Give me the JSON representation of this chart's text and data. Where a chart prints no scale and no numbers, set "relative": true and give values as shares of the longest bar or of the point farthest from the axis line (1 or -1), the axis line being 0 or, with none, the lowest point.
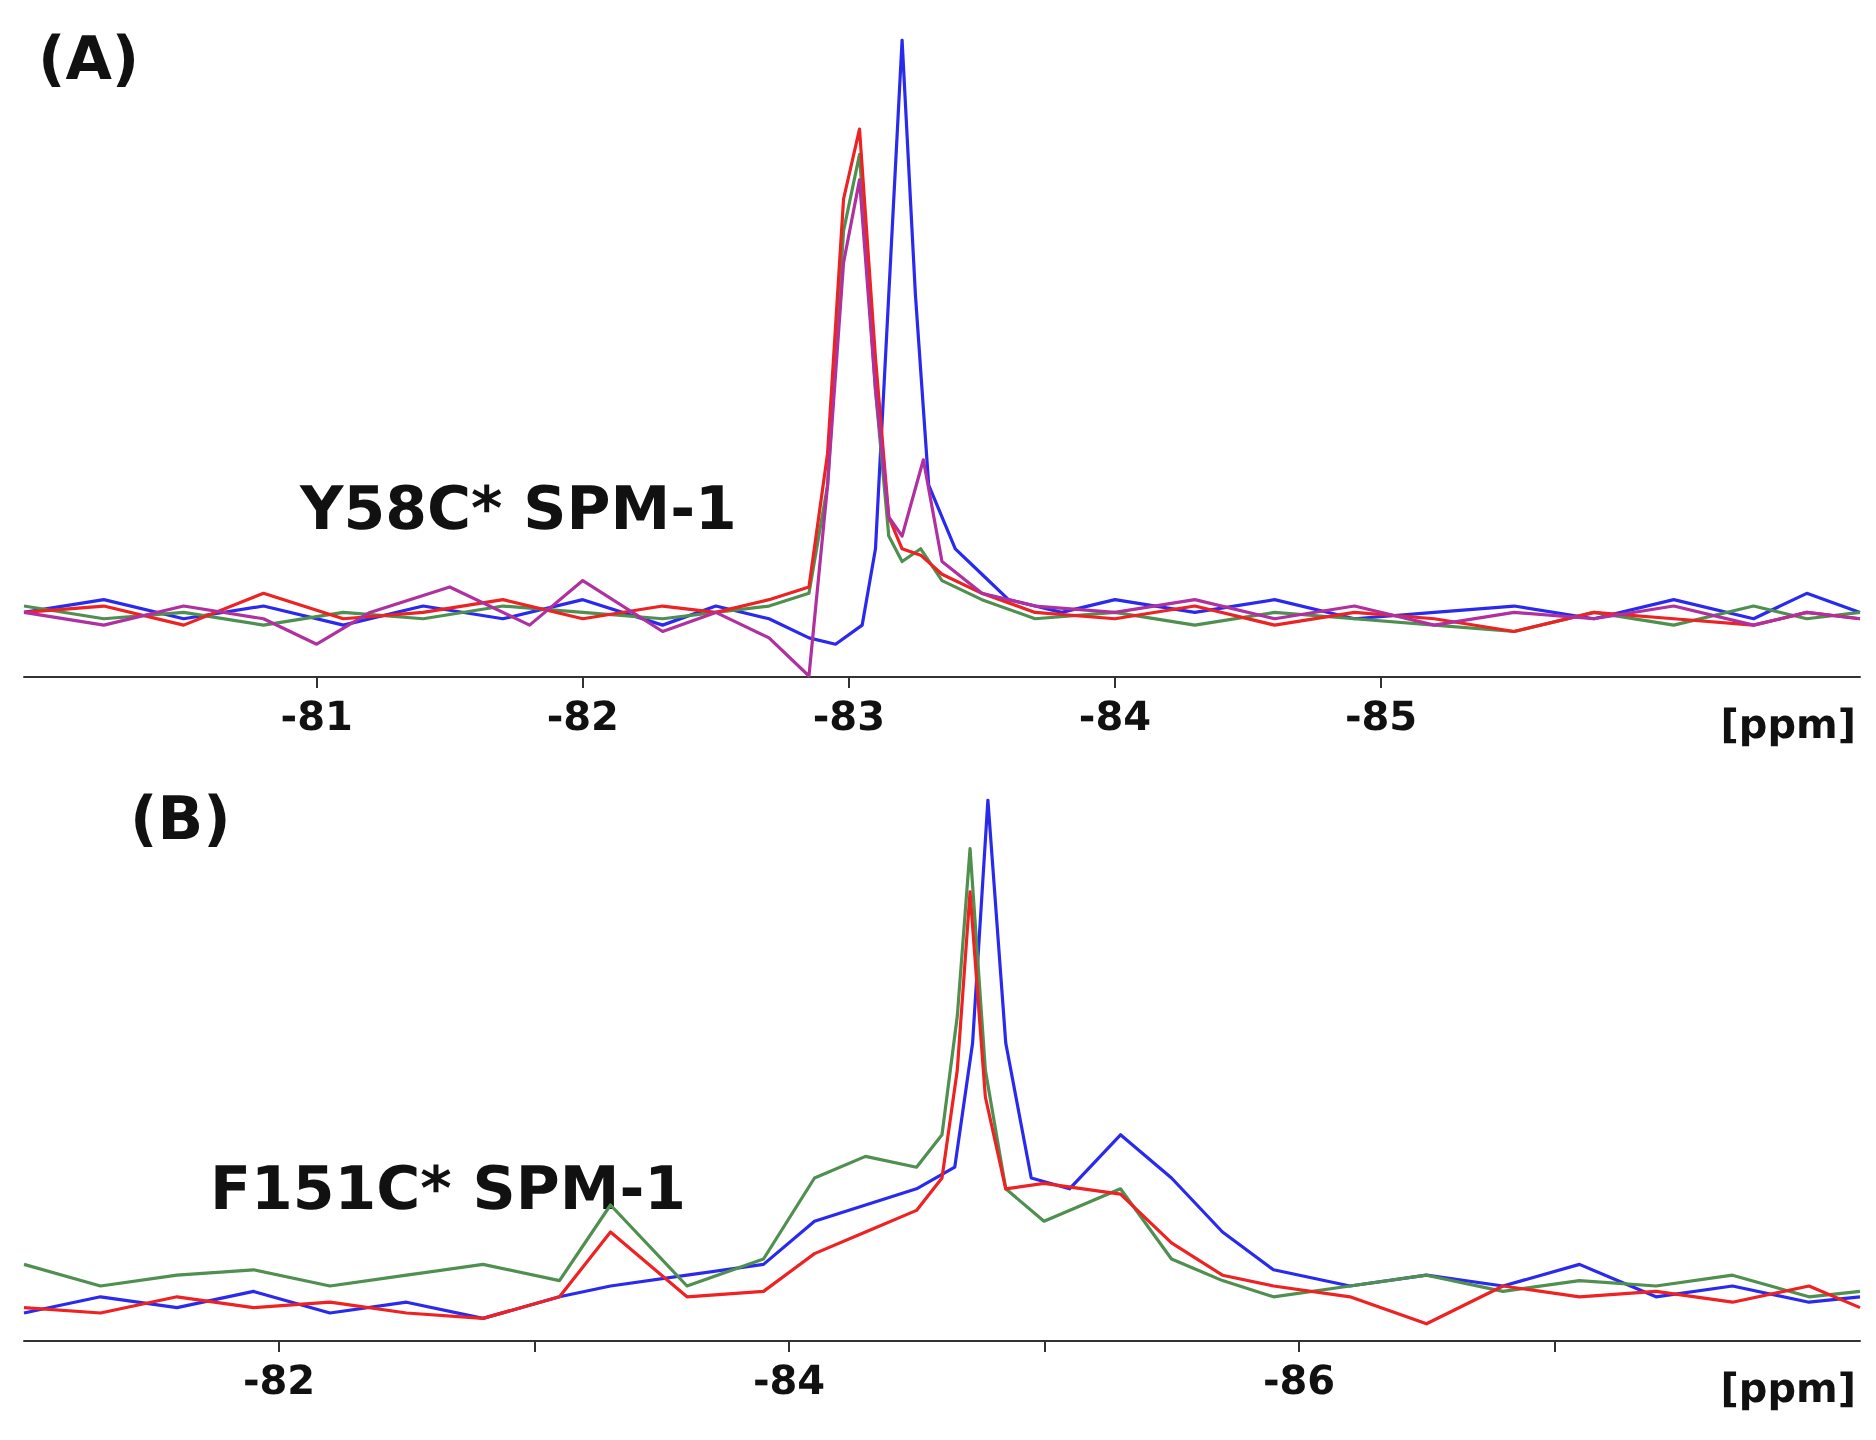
{
  "chart_data": [
    {
      "type": "line",
      "title": "(A)",
      "xlabel": "[ppm]",
      "relative": true,
      "xlim": [
        -79.9,
        -86.8
      ],
      "xticks": [
        -81,
        -82,
        -83,
        -84,
        -85
      ],
      "grid": false,
      "marker": "none",
      "line_style": "solid",
      "annotations": [
        "Y58C* SPM-1"
      ],
      "series": [
        {
          "color": "#2a2aee",
          "x": [
            -79.9,
            -80.2,
            -80.5,
            -80.8,
            -81.1,
            -81.4,
            -81.7,
            -82.0,
            -82.3,
            -82.5,
            -82.7,
            -82.85,
            -82.95,
            -83.05,
            -83.1,
            -83.15,
            -83.2,
            -83.25,
            -83.3,
            -83.4,
            -83.5,
            -83.6,
            -83.8,
            -84.0,
            -84.3,
            -84.6,
            -84.9,
            -85.2,
            -85.5,
            -85.8,
            -86.1,
            -86.4,
            -86.6,
            -86.8
          ],
          "values": [
            0.1,
            0.12,
            0.09,
            0.11,
            0.08,
            0.11,
            0.09,
            0.12,
            0.08,
            0.11,
            0.09,
            0.06,
            0.05,
            0.08,
            0.2,
            0.6,
            1.0,
            0.6,
            0.3,
            0.2,
            0.16,
            0.12,
            0.1,
            0.12,
            0.1,
            0.12,
            0.09,
            0.1,
            0.11,
            0.09,
            0.12,
            0.09,
            0.13,
            0.1
          ]
        },
        {
          "color": "#4f8f4f",
          "x": [
            -79.9,
            -80.2,
            -80.5,
            -80.8,
            -81.1,
            -81.4,
            -81.7,
            -82.0,
            -82.3,
            -82.5,
            -82.7,
            -82.85,
            -82.92,
            -82.98,
            -83.04,
            -83.1,
            -83.15,
            -83.2,
            -83.27,
            -83.35,
            -83.5,
            -83.7,
            -84.0,
            -84.3,
            -84.6,
            -84.9,
            -85.2,
            -85.5,
            -85.8,
            -86.1,
            -86.4,
            -86.6,
            -86.8
          ],
          "values": [
            0.11,
            0.09,
            0.1,
            0.08,
            0.1,
            0.09,
            0.11,
            0.1,
            0.09,
            0.1,
            0.11,
            0.13,
            0.3,
            0.7,
            0.82,
            0.45,
            0.22,
            0.18,
            0.2,
            0.15,
            0.12,
            0.09,
            0.1,
            0.08,
            0.1,
            0.09,
            0.08,
            0.07,
            0.1,
            0.08,
            0.11,
            0.09,
            0.1
          ]
        },
        {
          "color": "#ee2222",
          "x": [
            -79.9,
            -80.2,
            -80.5,
            -80.8,
            -81.1,
            -81.4,
            -81.7,
            -82.0,
            -82.3,
            -82.5,
            -82.7,
            -82.85,
            -82.92,
            -82.98,
            -83.04,
            -83.1,
            -83.15,
            -83.2,
            -83.27,
            -83.35,
            -83.5,
            -83.7,
            -84.0,
            -84.3,
            -84.6,
            -84.9,
            -85.2,
            -85.5,
            -85.8,
            -86.1,
            -86.4,
            -86.6,
            -86.8
          ],
          "values": [
            0.1,
            0.11,
            0.08,
            0.13,
            0.09,
            0.1,
            0.12,
            0.09,
            0.11,
            0.1,
            0.12,
            0.14,
            0.35,
            0.75,
            0.86,
            0.5,
            0.25,
            0.2,
            0.19,
            0.16,
            0.13,
            0.1,
            0.09,
            0.11,
            0.08,
            0.1,
            0.09,
            0.07,
            0.1,
            0.09,
            0.08,
            0.1,
            0.09
          ]
        },
        {
          "color": "#b0309f",
          "x": [
            -79.9,
            -80.2,
            -80.5,
            -80.8,
            -81.0,
            -81.2,
            -81.5,
            -81.8,
            -82.0,
            -82.3,
            -82.5,
            -82.7,
            -82.85,
            -82.92,
            -82.98,
            -83.04,
            -83.1,
            -83.15,
            -83.2,
            -83.28,
            -83.35,
            -83.5,
            -83.7,
            -84.0,
            -84.3,
            -84.6,
            -84.9,
            -85.2,
            -85.5,
            -85.8,
            -86.1,
            -86.4,
            -86.6,
            -86.8
          ],
          "values": [
            0.1,
            0.08,
            0.11,
            0.09,
            0.05,
            0.1,
            0.14,
            0.08,
            0.15,
            0.07,
            0.1,
            0.06,
            0.0,
            0.3,
            0.65,
            0.78,
            0.45,
            0.25,
            0.22,
            0.34,
            0.18,
            0.13,
            0.11,
            0.1,
            0.12,
            0.09,
            0.11,
            0.08,
            0.1,
            0.09,
            0.11,
            0.08,
            0.1,
            0.09
          ]
        }
      ]
    },
    {
      "type": "line",
      "title": "(B)",
      "xlabel": "[ppm]",
      "relative": true,
      "xlim": [
        -81.0,
        -88.2
      ],
      "xticks": [
        -82,
        {
          "value": -83,
          "label": null
        },
        -84,
        {
          "value": -85,
          "label": null
        },
        -86,
        {
          "value": -87,
          "label": null
        }
      ],
      "grid": false,
      "marker": "none",
      "line_style": "solid",
      "annotations": [
        "F151C* SPM-1"
      ],
      "series": [
        {
          "color": "#2a2aee",
          "x": [
            -81.0,
            -81.3,
            -81.6,
            -81.9,
            -82.2,
            -82.5,
            -82.8,
            -83.1,
            -83.3,
            -83.6,
            -83.9,
            -84.1,
            -84.3,
            -84.5,
            -84.65,
            -84.72,
            -84.78,
            -84.85,
            -84.95,
            -85.1,
            -85.3,
            -85.5,
            -85.7,
            -85.9,
            -86.2,
            -86.5,
            -86.8,
            -87.1,
            -87.4,
            -87.7,
            -88.0,
            -88.2
          ],
          "values": [
            0.05,
            0.08,
            0.06,
            0.09,
            0.05,
            0.07,
            0.04,
            0.08,
            0.1,
            0.12,
            0.14,
            0.22,
            0.25,
            0.28,
            0.32,
            0.55,
            1.0,
            0.55,
            0.3,
            0.28,
            0.38,
            0.3,
            0.2,
            0.13,
            0.1,
            0.12,
            0.1,
            0.14,
            0.08,
            0.1,
            0.07,
            0.08
          ]
        },
        {
          "color": "#4f8f4f",
          "x": [
            -81.0,
            -81.3,
            -81.6,
            -81.9,
            -82.2,
            -82.5,
            -82.8,
            -83.1,
            -83.3,
            -83.6,
            -83.9,
            -84.1,
            -84.3,
            -84.5,
            -84.6,
            -84.66,
            -84.71,
            -84.77,
            -84.85,
            -85.0,
            -85.3,
            -85.5,
            -85.7,
            -85.9,
            -86.2,
            -86.5,
            -86.8,
            -87.1,
            -87.4,
            -87.7,
            -88.0,
            -88.2
          ],
          "values": [
            0.14,
            0.1,
            0.12,
            0.13,
            0.1,
            0.12,
            0.14,
            0.11,
            0.25,
            0.1,
            0.15,
            0.3,
            0.34,
            0.32,
            0.38,
            0.6,
            0.91,
            0.5,
            0.28,
            0.22,
            0.28,
            0.15,
            0.11,
            0.08,
            0.1,
            0.12,
            0.09,
            0.11,
            0.1,
            0.12,
            0.08,
            0.09
          ]
        },
        {
          "color": "#ee2222",
          "x": [
            -81.0,
            -81.3,
            -81.6,
            -81.9,
            -82.2,
            -82.5,
            -82.8,
            -83.1,
            -83.3,
            -83.6,
            -83.9,
            -84.1,
            -84.3,
            -84.5,
            -84.6,
            -84.66,
            -84.71,
            -84.77,
            -84.85,
            -85.0,
            -85.3,
            -85.5,
            -85.7,
            -85.9,
            -86.2,
            -86.5,
            -86.8,
            -87.1,
            -87.4,
            -87.7,
            -88.0,
            -88.2
          ],
          "values": [
            0.06,
            0.05,
            0.08,
            0.06,
            0.07,
            0.05,
            0.04,
            0.08,
            0.2,
            0.08,
            0.09,
            0.16,
            0.2,
            0.24,
            0.3,
            0.5,
            0.83,
            0.45,
            0.28,
            0.29,
            0.27,
            0.18,
            0.12,
            0.1,
            0.08,
            0.03,
            0.1,
            0.08,
            0.09,
            0.07,
            0.1,
            0.06
          ]
        }
      ]
    }
  ]
}
